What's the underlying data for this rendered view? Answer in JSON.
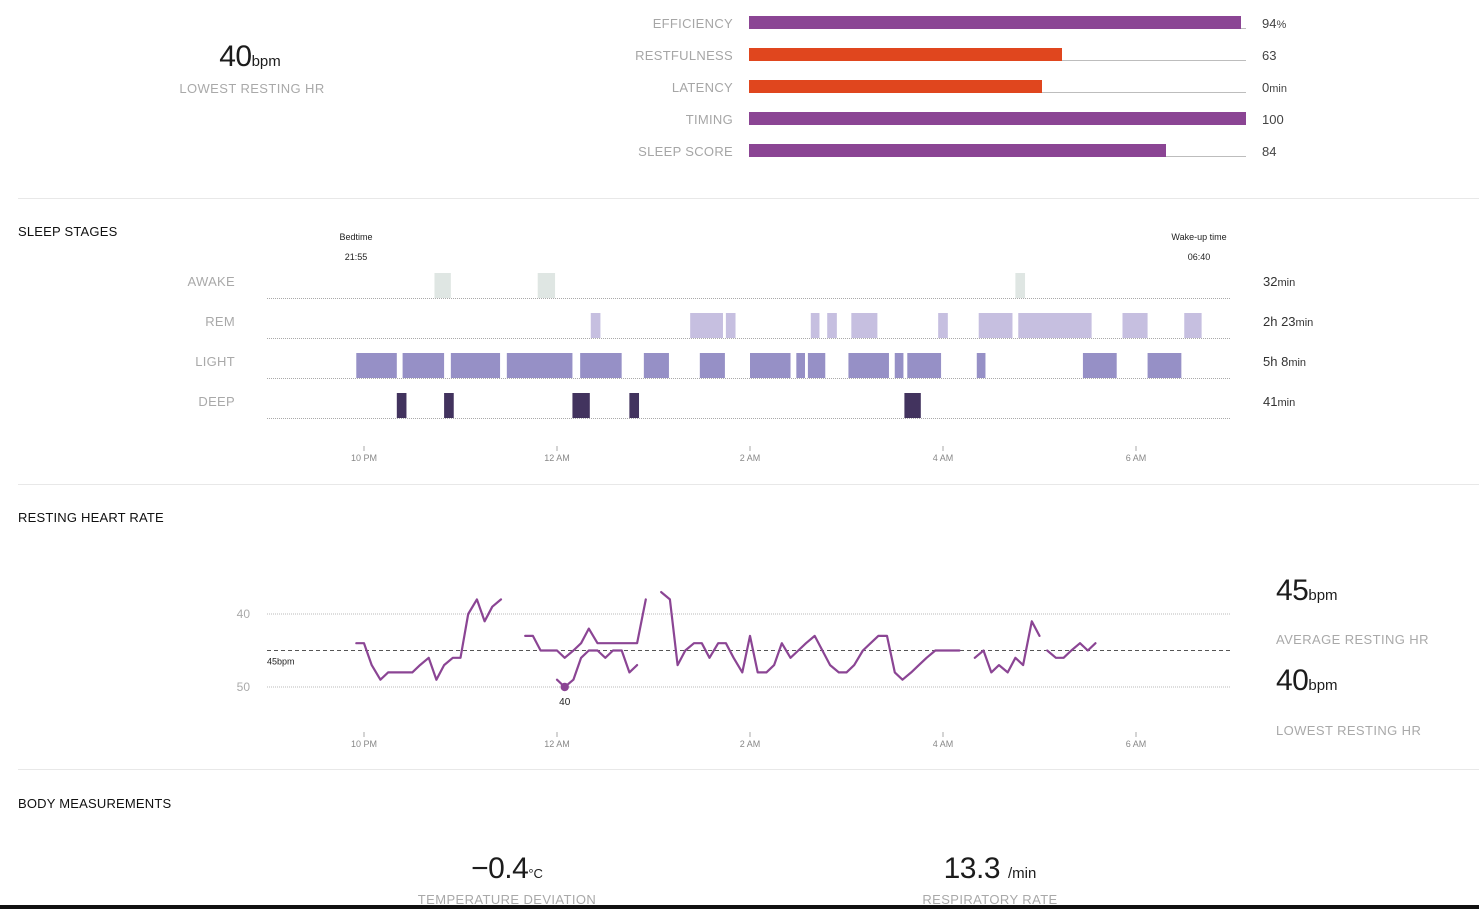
{
  "summary": {
    "lowest_hr_value": "40",
    "lowest_hr_unit": "bpm",
    "lowest_hr_label": "LOWEST RESTING HR"
  },
  "contributors": [
    {
      "label": "EFFICIENCY",
      "value": "94",
      "unit": "%",
      "fill": 0.99,
      "color": "#8b4594"
    },
    {
      "label": "RESTFULNESS",
      "value": "63",
      "unit": "",
      "fill": 0.63,
      "color": "#e0461e"
    },
    {
      "label": "LATENCY",
      "value": "0",
      "unit": "min",
      "fill": 0.59,
      "color": "#e0461e"
    },
    {
      "label": "TIMING",
      "value": "100",
      "unit": "",
      "fill": 1.0,
      "color": "#8b4594"
    },
    {
      "label": "SLEEP SCORE",
      "value": "84",
      "unit": "",
      "fill": 0.84,
      "color": "#8b4594"
    }
  ],
  "sleep_stages": {
    "title": "SLEEP STAGES",
    "bedtime_label": "Bedtime",
    "bedtime_value": "21:55",
    "wakeup_label": "Wake-up time",
    "wakeup_value": "06:40",
    "x_ticks": [
      "10 PM",
      "12 AM",
      "2 AM",
      "4 AM",
      "6 AM"
    ],
    "stages": [
      {
        "key": "awake",
        "label": "AWAKE",
        "total": "32",
        "total_unit": "min",
        "color": "#dfe6e3",
        "segments": [
          [
            1.73,
            1.9
          ],
          [
            2.8,
            2.98
          ],
          [
            7.75,
            7.85
          ]
        ]
      },
      {
        "key": "rem",
        "label": "REM",
        "total": "2h 23",
        "total_unit": "min",
        "color": "#c6bfe0",
        "segments": [
          [
            3.35,
            3.45
          ],
          [
            4.38,
            4.72
          ],
          [
            4.75,
            4.85
          ],
          [
            5.63,
            5.72
          ],
          [
            5.8,
            5.9
          ],
          [
            6.05,
            6.32
          ],
          [
            6.95,
            7.05
          ],
          [
            7.37,
            7.72
          ],
          [
            7.78,
            8.54
          ],
          [
            8.86,
            9.12
          ],
          [
            9.5,
            9.68
          ]
        ]
      },
      {
        "key": "light",
        "label": "LIGHT",
        "total": "5h 8",
        "total_unit": "min",
        "color": "#9690c6",
        "segments": [
          [
            0.92,
            1.34
          ],
          [
            1.4,
            1.83
          ],
          [
            1.9,
            2.41
          ],
          [
            2.48,
            3.16
          ],
          [
            3.24,
            3.67
          ],
          [
            3.9,
            4.16
          ],
          [
            4.48,
            4.74
          ],
          [
            5.0,
            5.42
          ],
          [
            5.48,
            5.57
          ],
          [
            5.6,
            5.78
          ],
          [
            6.02,
            6.44
          ],
          [
            6.5,
            6.59
          ],
          [
            6.63,
            6.98
          ],
          [
            7.35,
            7.44
          ],
          [
            8.45,
            8.8
          ],
          [
            9.12,
            9.47
          ]
        ]
      },
      {
        "key": "deep",
        "label": "DEEP",
        "total": "41",
        "total_unit": "min",
        "color": "#42335e",
        "segments": [
          [
            1.34,
            1.44
          ],
          [
            1.83,
            1.93
          ],
          [
            3.16,
            3.34
          ],
          [
            3.75,
            3.85
          ],
          [
            6.6,
            6.77
          ]
        ]
      }
    ]
  },
  "resting_hr": {
    "title": "RESTING HEART RATE",
    "y_ticks": [
      "50",
      "40"
    ],
    "average_line_label": "45bpm",
    "min_marker_label": "40",
    "x_ticks": [
      "10 PM",
      "12 AM",
      "2 AM",
      "4 AM",
      "6 AM"
    ],
    "average_value": "45",
    "average_unit": "bpm",
    "average_label": "AVERAGE RESTING HR",
    "lowest_value": "40",
    "lowest_unit": "bpm",
    "lowest_label": "LOWEST RESTING HR",
    "line_color": "#8b4594"
  },
  "chart_data": {
    "type": "line",
    "title": "RESTING HEART RATE",
    "xlabel": "",
    "ylabel": "",
    "x_unit": "hours after 9 PM",
    "ylim": [
      38,
      52
    ],
    "y_ticks": [
      40,
      50
    ],
    "reference_line": {
      "value": 45,
      "label": "45bpm"
    },
    "min_point": {
      "x": 3.08,
      "y": 40,
      "label": "40"
    },
    "series": [
      {
        "segments": [
          [
            [
              0.92,
              46
            ],
            [
              1.0,
              46
            ],
            [
              1.08,
              43
            ],
            [
              1.17,
              41
            ],
            [
              1.25,
              42
            ],
            [
              1.33,
              42
            ],
            [
              1.42,
              42
            ],
            [
              1.5,
              42
            ],
            [
              1.58,
              43
            ],
            [
              1.67,
              44
            ],
            [
              1.75,
              41
            ],
            [
              1.83,
              43
            ],
            [
              1.92,
              44
            ],
            [
              2.0,
              44
            ],
            [
              2.08,
              50
            ],
            [
              2.17,
              52
            ],
            [
              2.25,
              49
            ],
            [
              2.33,
              51
            ],
            [
              2.42,
              52
            ]
          ],
          [
            [
              2.67,
              47
            ],
            [
              2.75,
              47
            ],
            [
              2.83,
              45
            ],
            [
              2.92,
              45
            ],
            [
              3.0,
              45
            ],
            [
              3.08,
              44
            ],
            [
              3.17,
              45
            ],
            [
              3.25,
              46
            ],
            [
              3.33,
              48
            ],
            [
              3.42,
              46
            ],
            [
              3.5,
              46
            ],
            [
              3.58,
              46
            ],
            [
              3.67,
              46
            ],
            [
              3.75,
              46
            ],
            [
              3.83,
              46
            ],
            [
              3.92,
              52
            ]
          ],
          [
            [
              3.0,
              41
            ],
            [
              3.08,
              40
            ],
            [
              3.17,
              41
            ],
            [
              3.25,
              44
            ],
            [
              3.33,
              45
            ],
            [
              3.42,
              45
            ],
            [
              3.5,
              44
            ],
            [
              3.58,
              45
            ],
            [
              3.67,
              45
            ],
            [
              3.75,
              42
            ],
            [
              3.83,
              43
            ]
          ],
          [
            [
              4.08,
              53
            ],
            [
              4.17,
              52
            ],
            [
              4.25,
              43
            ],
            [
              4.33,
              45
            ],
            [
              4.42,
              46
            ],
            [
              4.5,
              46
            ],
            [
              4.58,
              44
            ],
            [
              4.67,
              46
            ],
            [
              4.75,
              46
            ],
            [
              4.83,
              44
            ],
            [
              4.92,
              42
            ],
            [
              5.0,
              47
            ],
            [
              5.08,
              42
            ],
            [
              5.17,
              42
            ],
            [
              5.25,
              43
            ],
            [
              5.33,
              46
            ],
            [
              5.42,
              44
            ],
            [
              5.5,
              45
            ],
            [
              5.58,
              46
            ],
            [
              5.67,
              47
            ],
            [
              5.75,
              45
            ],
            [
              5.83,
              43
            ],
            [
              5.92,
              42
            ],
            [
              6.0,
              42
            ],
            [
              6.08,
              43
            ],
            [
              6.17,
              45
            ],
            [
              6.25,
              46
            ],
            [
              6.33,
              47
            ],
            [
              6.42,
              47
            ],
            [
              6.5,
              42
            ],
            [
              6.58,
              41
            ],
            [
              6.67,
              42
            ],
            [
              6.75,
              43
            ],
            [
              6.83,
              44
            ],
            [
              6.92,
              45
            ],
            [
              7.0,
              45
            ],
            [
              7.08,
              45
            ],
            [
              7.17,
              45
            ]
          ],
          [
            [
              7.33,
              44
            ],
            [
              7.42,
              45
            ],
            [
              7.5,
              42
            ],
            [
              7.58,
              43
            ],
            [
              7.67,
              42
            ],
            [
              7.75,
              44
            ],
            [
              7.83,
              43
            ],
            [
              7.92,
              49
            ],
            [
              8.0,
              47
            ]
          ],
          [
            [
              8.08,
              45
            ],
            [
              8.17,
              44
            ],
            [
              8.25,
              44
            ],
            [
              8.33,
              45
            ],
            [
              8.42,
              46
            ],
            [
              8.5,
              45
            ],
            [
              8.58,
              46
            ]
          ]
        ]
      }
    ],
    "x_ticks": [
      "10 PM",
      "12 AM",
      "2 AM",
      "4 AM",
      "6 AM"
    ]
  },
  "body": {
    "title": "BODY MEASUREMENTS",
    "temp_value": "−0.4",
    "temp_unit": "°C",
    "temp_label": "TEMPERATURE DEVIATION",
    "resp_value": "13.3",
    "resp_unit": "/min",
    "resp_label": "RESPIRATORY RATE"
  }
}
